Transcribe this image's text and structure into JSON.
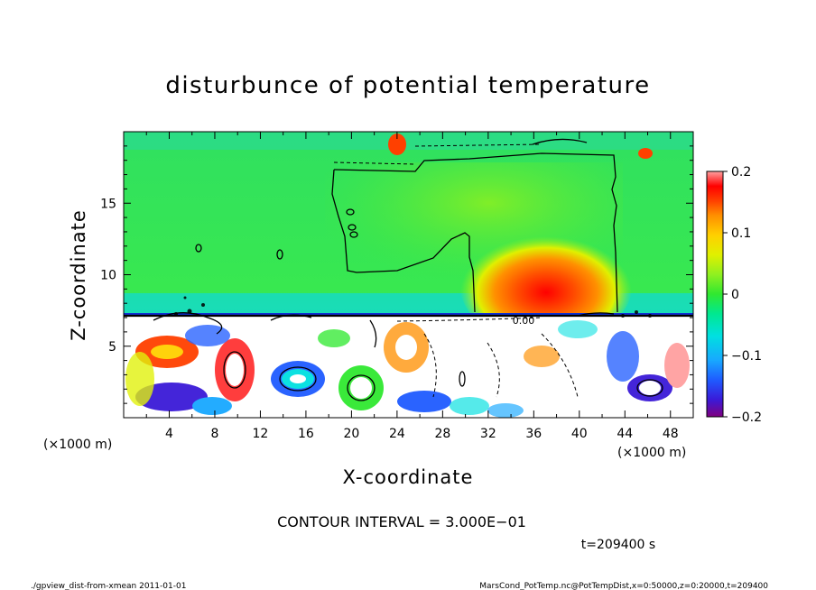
{
  "chart_data": {
    "type": "heatmap",
    "title": "disturbunce of potential temperature",
    "xlabel": "X-coordinate",
    "ylabel": "Z-coordinate",
    "x_unit_left": "(×1000 m)",
    "x_unit_right": "(×1000 m)",
    "xlim": [
      0,
      50
    ],
    "ylim": [
      0,
      20
    ],
    "xticks": [
      "4",
      "8",
      "12",
      "16",
      "20",
      "24",
      "28",
      "32",
      "36",
      "40",
      "44",
      "48"
    ],
    "yticks": [
      "5",
      "10",
      "15"
    ],
    "colorbar": {
      "range": [
        -0.2,
        0.2
      ],
      "labels": [
        "0.2",
        "0.1",
        "0",
        "−0.1",
        "−0.2"
      ],
      "colors": [
        "#800080",
        "#3a1ad8",
        "#1f5bff",
        "#18a8ff",
        "#00e0e0",
        "#00e890",
        "#30e830",
        "#90f020",
        "#e0f000",
        "#ffd000",
        "#ff9000",
        "#ff4000",
        "#ff0000",
        "#ffa0a0"
      ]
    },
    "contour_interval": "CONTOUR INTERVAL = 3.000E−01",
    "contour_label": "0.00",
    "time": "t=209400 s"
  },
  "footer": {
    "left": "./gpview_dist-from-xmean  2011-01-01",
    "right": "MarsCond_PotTemp.nc@PotTempDist,x=0:50000,z=0:20000,t=209400"
  }
}
